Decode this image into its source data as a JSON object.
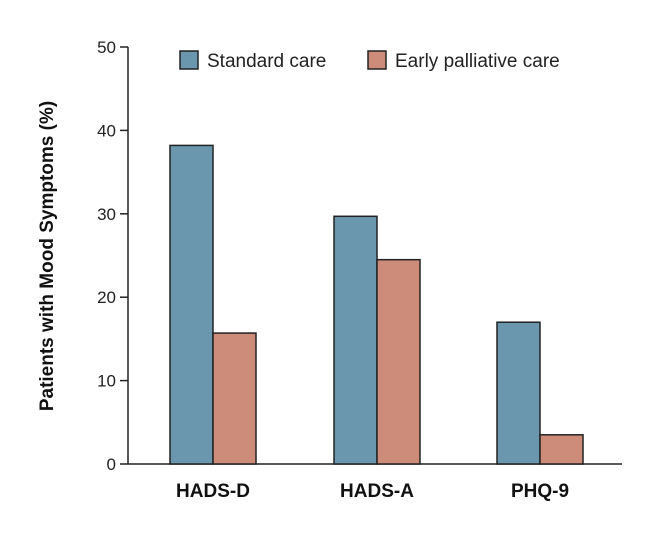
{
  "chart_data": {
    "type": "bar",
    "title": "",
    "xlabel": "",
    "ylabel": "Patients with Mood Symptoms (%)",
    "categories": [
      "HADS-D",
      "HADS-A",
      "PHQ-9"
    ],
    "series": [
      {
        "name": "Standard care",
        "values": [
          38.2,
          29.7,
          17.0
        ],
        "color": "#6a97ad"
      },
      {
        "name": "Early palliative care",
        "values": [
          15.7,
          24.5,
          3.5
        ],
        "color": "#cd8b79"
      }
    ],
    "ylim": [
      0,
      50
    ],
    "yticks": [
      0,
      10,
      20,
      30,
      40,
      50
    ],
    "grid": false,
    "legend_position": "top"
  }
}
